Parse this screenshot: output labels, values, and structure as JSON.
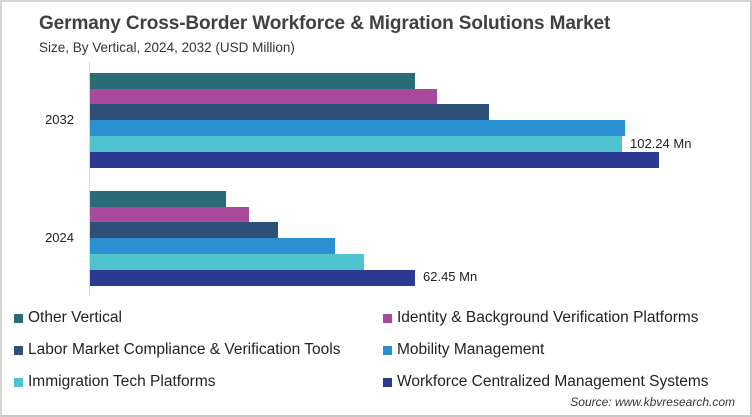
{
  "header": {
    "title": "Germany Cross-Border Workforce & Migration Solutions Market",
    "subtitle": "Size, By Vertical, 2024, 2032 (USD Million)"
  },
  "source": "Source: www.kbvresearch.com",
  "legend": [
    {
      "label": "Other Vertical",
      "color": "#2a6b78"
    },
    {
      "label": "Identity & Background Verification Platforms",
      "color": "#a8499a"
    },
    {
      "label": "Labor Market Compliance & Verification Tools",
      "color": "#2d4f78"
    },
    {
      "label": "Mobility Management",
      "color": "#2a90d2"
    },
    {
      "label": "Immigration Tech Platforms",
      "color": "#4fc4d0"
    },
    {
      "label": "Workforce Centralized Management Systems",
      "color": "#2b3990"
    }
  ],
  "annotations": {
    "label_2032": "102.24 Mn",
    "label_2024": "62.45 Mn"
  },
  "chart_data": {
    "type": "bar",
    "orientation": "horizontal",
    "title": "Germany Cross-Border Workforce & Migration Solutions Market",
    "subtitle": "Size, By Vertical, 2024, 2032 (USD Million)",
    "categories": [
      "2032",
      "2024"
    ],
    "xlabel": "",
    "ylabel": "",
    "grid": false,
    "legend_position": "bottom",
    "series": [
      {
        "name": "Other Vertical",
        "color": "#2a6b78",
        "values": [
          62.5,
          26.2
        ]
      },
      {
        "name": "Identity & Background Verification Platforms",
        "color": "#a8499a",
        "values": [
          66.7,
          30.6
        ]
      },
      {
        "name": "Labor Market Compliance & Verification Tools",
        "color": "#2d4f78",
        "values": [
          76.7,
          36.1
        ]
      },
      {
        "name": "Mobility Management",
        "color": "#2a90d2",
        "values": [
          102.8,
          47.1
        ]
      },
      {
        "name": "Immigration Tech Platforms",
        "color": "#4fc4d0",
        "values": [
          102.24,
          52.7
        ]
      },
      {
        "name": "Workforce Centralized Management Systems",
        "color": "#2b3990",
        "values": [
          109.4,
          62.45
        ]
      }
    ],
    "annotations": [
      {
        "text": "102.24 Mn",
        "category": "2032",
        "series": "Immigration Tech Platforms"
      },
      {
        "text": "62.45 Mn",
        "category": "2024",
        "series": "Workforce Centralized Management Systems"
      }
    ],
    "source": "Source: www.kbvresearch.com"
  }
}
